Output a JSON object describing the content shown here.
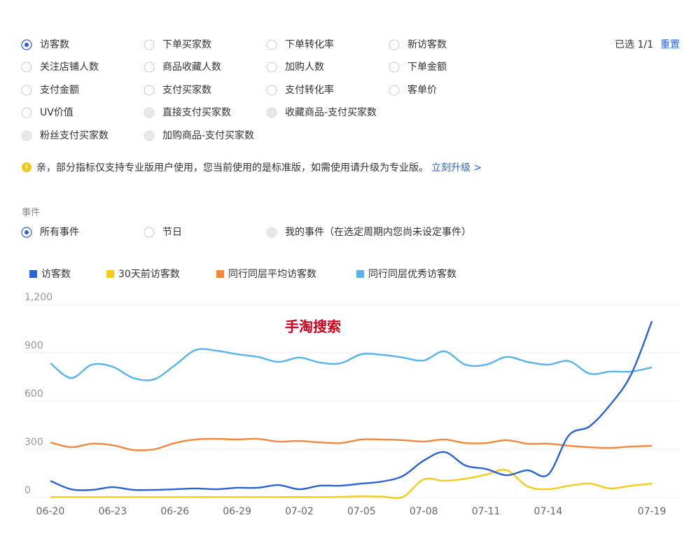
{
  "filters": {
    "rows": [
      [
        {
          "label": "访客数",
          "checked": true
        },
        {
          "label": "下单买家数"
        },
        {
          "label": "下单转化率"
        },
        {
          "label": "新访客数"
        }
      ],
      [
        {
          "label": "关注店铺人数"
        },
        {
          "label": "商品收藏人数"
        },
        {
          "label": "加购人数"
        },
        {
          "label": "下单金额"
        }
      ],
      [
        {
          "label": "支付金额"
        },
        {
          "label": "支付买家数"
        },
        {
          "label": "支付转化率"
        },
        {
          "label": "客单价"
        }
      ],
      [
        {
          "label": "UV价值"
        },
        {
          "label": "直接支付买家数",
          "disabled": true
        },
        {
          "label": "收藏商品-支付买家数",
          "disabled": true
        }
      ],
      [
        {
          "label": "粉丝支付买家数",
          "disabled": true
        },
        {
          "label": "加购商品-支付买家数",
          "disabled": true
        }
      ]
    ],
    "count": "已选 1/1",
    "reset": "重置"
  },
  "notice": {
    "text": "亲，部分指标仅支持专业版用户使用，您当前使用的是标准版，如需使用请升级为专业版。",
    "link": "立刻升级 >"
  },
  "events": {
    "label": "事件",
    "options": [
      {
        "label": "所有事件",
        "checked": true
      },
      {
        "label": "节日"
      },
      {
        "label": "我的事件（在选定周期内您尚未设定事件）",
        "disabled": true
      }
    ]
  },
  "chart_data": {
    "type": "line",
    "annotation": "手淘搜索",
    "categories": [
      "06-20",
      null,
      null,
      "06-23",
      null,
      null,
      "06-26",
      null,
      null,
      "06-29",
      null,
      null,
      "07-02",
      null,
      null,
      "07-05",
      null,
      null,
      "07-08",
      null,
      null,
      "07-11",
      null,
      null,
      "07-14",
      null,
      null,
      null,
      null,
      "07-19"
    ],
    "series": [
      {
        "name": "访客数",
        "color": "#2a62d8",
        "values": [
          104,
          52,
          48,
          65,
          48,
          48,
          52,
          57,
          52,
          61,
          61,
          78,
          52,
          74,
          74,
          87,
          100,
          135,
          230,
          283,
          200,
          178,
          139,
          170,
          143,
          387,
          443,
          578,
          765,
          1096
        ]
      },
      {
        "name": "30天前访客数",
        "color": "#f5cc1e",
        "values": [
          3,
          3,
          3,
          3,
          3,
          3,
          3,
          4,
          3,
          3,
          3,
          3,
          4,
          3,
          5,
          8,
          6,
          5,
          113,
          104,
          117,
          143,
          170,
          70,
          52,
          74,
          87,
          57,
          74,
          87
        ]
      },
      {
        "name": "同行同层平均访客数",
        "color": "#f4873b",
        "values": [
          343,
          313,
          335,
          326,
          296,
          300,
          339,
          361,
          365,
          361,
          365,
          348,
          352,
          343,
          339,
          361,
          361,
          357,
          348,
          361,
          339,
          339,
          357,
          335,
          335,
          322,
          313,
          309,
          317,
          322
        ]
      },
      {
        "name": "同行同层优秀访客数",
        "color": "#55b4f0",
        "values": [
          835,
          743,
          826,
          813,
          743,
          735,
          822,
          917,
          913,
          891,
          874,
          843,
          870,
          839,
          835,
          891,
          887,
          870,
          852,
          909,
          826,
          826,
          874,
          843,
          826,
          848,
          770,
          783,
          783,
          809
        ]
      }
    ],
    "ylim": [
      0,
      1200
    ],
    "yticks": [
      0,
      300,
      600,
      900,
      {
        "value": 1200,
        "label": "1,200"
      }
    ],
    "grid": true
  }
}
